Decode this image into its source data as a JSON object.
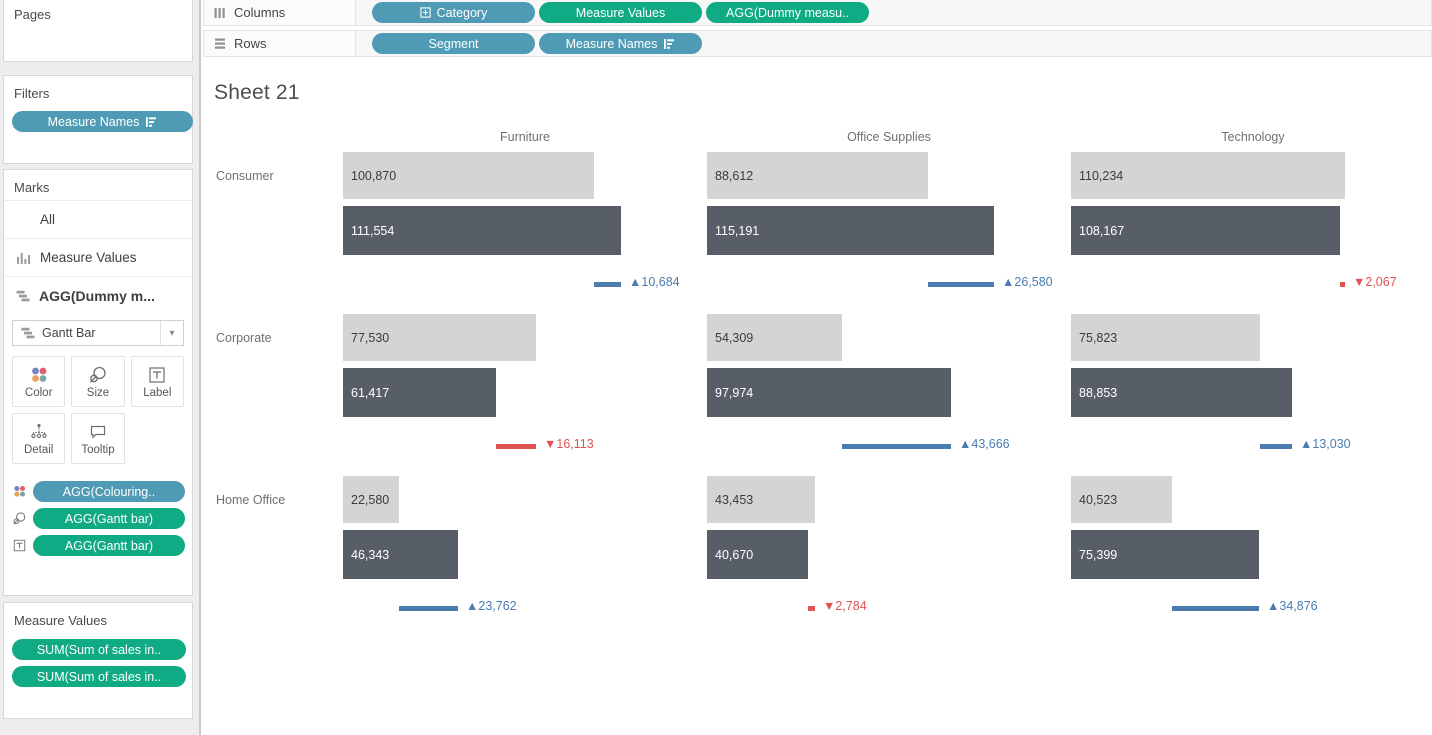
{
  "colors": {
    "dimension_pill": "#4f9bb5",
    "measure_pill": "#10ab84",
    "bar_light": "#d4d4d4",
    "bar_dark": "#585e68",
    "delta_up": "#4a7caf",
    "delta_down": "#e05353"
  },
  "shelves": {
    "columns_label": "Columns",
    "rows_label": "Rows",
    "columns_pills": [
      {
        "text": "Category",
        "kind": "dimension",
        "left_icon": "plus-box-icon"
      },
      {
        "text": "Measure Values",
        "kind": "measure"
      },
      {
        "text": "AGG(Dummy measu..",
        "kind": "measure"
      }
    ],
    "rows_pills": [
      {
        "text": "Segment",
        "kind": "dimension"
      },
      {
        "text": "Measure Names",
        "kind": "dimension",
        "right_icon": "sort-icon"
      }
    ]
  },
  "sidebar": {
    "pages_title": "Pages",
    "filters_title": "Filters",
    "filter_pills": [
      {
        "text": "Measure Names",
        "kind": "dimension",
        "right_icon": "sort-icon"
      }
    ],
    "marks": {
      "title": "Marks",
      "layers": [
        {
          "label": "All",
          "icon": null,
          "bold": false
        },
        {
          "label": "Measure Values",
          "icon": "bar-chart-icon",
          "bold": false
        },
        {
          "label": "AGG(Dummy m...",
          "icon": "gantt-icon",
          "bold": true
        }
      ],
      "mark_type_label": "Gantt Bar",
      "buttons": [
        {
          "label": "Color",
          "icon": "color-icon"
        },
        {
          "label": "Size",
          "icon": "size-icon"
        },
        {
          "label": "Label",
          "icon": "label-icon"
        },
        {
          "label": "Detail",
          "icon": "detail-icon"
        },
        {
          "label": "Tooltip",
          "icon": "tooltip-icon"
        }
      ],
      "encodings": [
        {
          "icon": "color-icon",
          "text": "AGG(Colouring..",
          "kind": "dimension"
        },
        {
          "icon": "size-icon",
          "text": "AGG(Gantt bar)",
          "kind": "measure"
        },
        {
          "icon": "label-icon",
          "text": "AGG(Gantt bar)",
          "kind": "measure"
        }
      ]
    },
    "measure_values": {
      "title": "Measure Values",
      "pills": [
        {
          "text": "SUM(Sum of sales in..",
          "kind": "measure"
        },
        {
          "text": "SUM(Sum of sales in..",
          "kind": "measure"
        }
      ]
    }
  },
  "chart_data": {
    "type": "bar",
    "title": "Sheet 21",
    "column_headers": [
      "Furniture",
      "Office Supplies",
      "Technology"
    ],
    "row_headers": [
      "Consumer",
      "Corporate",
      "Home Office"
    ],
    "legend_position": "none",
    "grid": false,
    "cells": [
      {
        "row": "Consumer",
        "col": "Furniture",
        "bar1": 100870,
        "bar2": 111554,
        "bar1_label": "100,870",
        "bar2_label": "111,554",
        "delta": 10684,
        "delta_label": "▲10,684",
        "direction": "up"
      },
      {
        "row": "Consumer",
        "col": "Office Supplies",
        "bar1": 88612,
        "bar2": 115191,
        "bar1_label": "88,612",
        "bar2_label": "115,191",
        "delta": 26580,
        "delta_label": "▲26,580",
        "direction": "up"
      },
      {
        "row": "Consumer",
        "col": "Technology",
        "bar1": 110234,
        "bar2": 108167,
        "bar1_label": "110,234",
        "bar2_label": "108,167",
        "delta": 2067,
        "delta_label": "▼2,067",
        "direction": "down"
      },
      {
        "row": "Corporate",
        "col": "Furniture",
        "bar1": 77530,
        "bar2": 61417,
        "bar1_label": "77,530",
        "bar2_label": "61,417",
        "delta": 16113,
        "delta_label": "▼16,113",
        "direction": "down"
      },
      {
        "row": "Corporate",
        "col": "Office Supplies",
        "bar1": 54309,
        "bar2": 97974,
        "bar1_label": "54,309",
        "bar2_label": "97,974",
        "delta": 43666,
        "delta_label": "▲43,666",
        "direction": "up"
      },
      {
        "row": "Corporate",
        "col": "Technology",
        "bar1": 75823,
        "bar2": 88853,
        "bar1_label": "75,823",
        "bar2_label": "88,853",
        "delta": 13030,
        "delta_label": "▲13,030",
        "direction": "up"
      },
      {
        "row": "Home Office",
        "col": "Furniture",
        "bar1": 22580,
        "bar2": 46343,
        "bar1_label": "22,580",
        "bar2_label": "46,343",
        "delta": 23762,
        "delta_label": "▲23,762",
        "direction": "up"
      },
      {
        "row": "Home Office",
        "col": "Office Supplies",
        "bar1": 43453,
        "bar2": 40670,
        "bar1_label": "43,453",
        "bar2_label": "40,670",
        "delta": 2784,
        "delta_label": "▼2,784",
        "direction": "down"
      },
      {
        "row": "Home Office",
        "col": "Technology",
        "bar1": 40523,
        "bar2": 75399,
        "bar1_label": "40,523",
        "bar2_label": "75,399",
        "delta": 34876,
        "delta_label": "▲34,876",
        "direction": "up"
      }
    ]
  }
}
